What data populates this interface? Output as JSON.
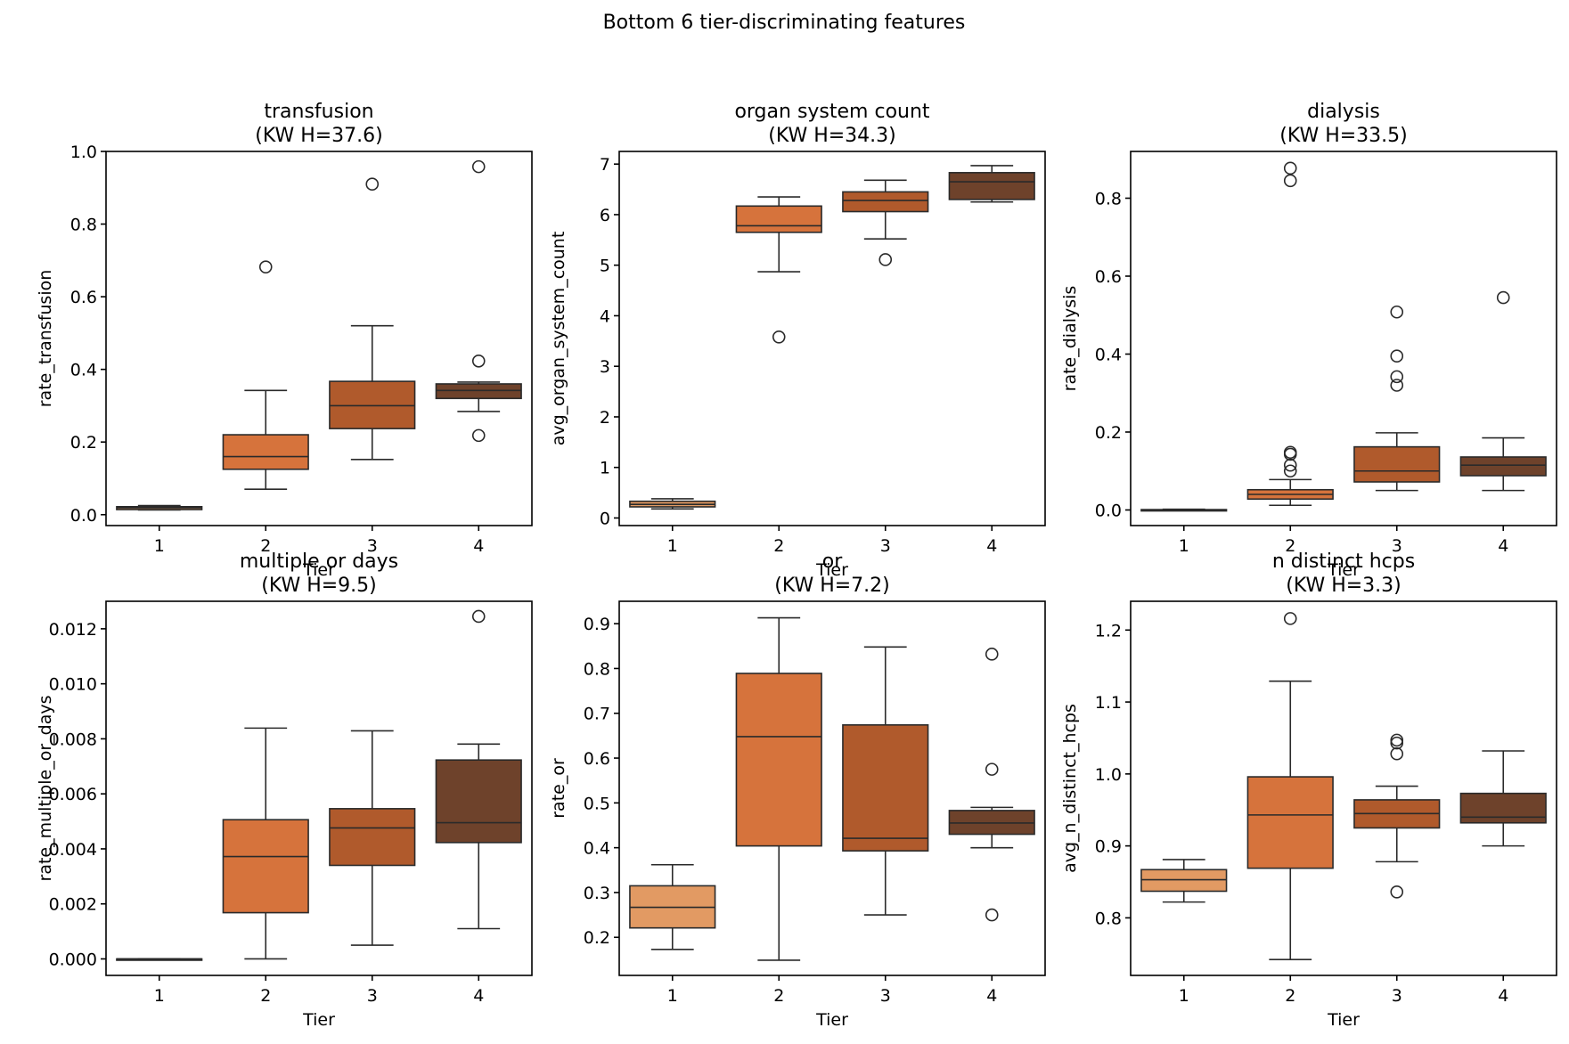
{
  "figure": {
    "suptitle": "Bottom 6 tier-discriminating features"
  },
  "colors": {
    "tier_1": "#e29a63",
    "tier_2": "#d6733c",
    "tier_3": "#b05a2c",
    "tier_4": "#6e422b",
    "edge": "#2a2a2a",
    "axis": "#000000"
  },
  "chart_data": [
    {
      "type": "box",
      "title": "transfusion",
      "subtitle": "(KW H=37.6)",
      "xlabel": "Tier",
      "ylabel": "rate_transfusion",
      "categories": [
        "1",
        "2",
        "3",
        "4"
      ],
      "ylim": [
        -0.03,
        1.0
      ],
      "yticks": [
        0.0,
        0.2,
        0.4,
        0.6,
        0.8,
        1.0
      ],
      "ytick_labels": [
        "0.0",
        "0.2",
        "0.4",
        "0.6",
        "0.8",
        "1.0"
      ],
      "boxes": [
        {
          "tier": "1",
          "whislo": 0.013,
          "q1": 0.014,
          "med": 0.019,
          "q3": 0.022,
          "whishi": 0.025,
          "fliers": []
        },
        {
          "tier": "2",
          "whislo": 0.07,
          "q1": 0.125,
          "med": 0.16,
          "q3": 0.22,
          "whishi": 0.342,
          "fliers": [
            0.682
          ]
        },
        {
          "tier": "3",
          "whislo": 0.152,
          "q1": 0.237,
          "med": 0.3,
          "q3": 0.367,
          "whishi": 0.52,
          "fliers": [
            0.91
          ]
        },
        {
          "tier": "4",
          "whislo": 0.284,
          "q1": 0.32,
          "med": 0.342,
          "q3": 0.36,
          "whishi": 0.365,
          "fliers": [
            0.958,
            0.423,
            0.218
          ]
        }
      ]
    },
    {
      "type": "box",
      "title": "organ system count",
      "subtitle": "(KW H=34.3)",
      "xlabel": "Tier",
      "ylabel": "avg_organ_system_count",
      "categories": [
        "1",
        "2",
        "3",
        "4"
      ],
      "ylim": [
        -0.15,
        7.25
      ],
      "yticks": [
        0,
        1,
        2,
        3,
        4,
        5,
        6,
        7
      ],
      "ytick_labels": [
        "0",
        "1",
        "2",
        "3",
        "4",
        "5",
        "6",
        "7"
      ],
      "boxes": [
        {
          "tier": "1",
          "whislo": 0.18,
          "q1": 0.22,
          "med": 0.27,
          "q3": 0.33,
          "whishi": 0.38,
          "fliers": []
        },
        {
          "tier": "2",
          "whislo": 4.87,
          "q1": 5.65,
          "med": 5.78,
          "q3": 6.17,
          "whishi": 6.35,
          "fliers": [
            3.58
          ]
        },
        {
          "tier": "3",
          "whislo": 5.52,
          "q1": 6.06,
          "med": 6.28,
          "q3": 6.45,
          "whishi": 6.68,
          "fliers": [
            5.11
          ]
        },
        {
          "tier": "4",
          "whislo": 6.25,
          "q1": 6.3,
          "med": 6.65,
          "q3": 6.83,
          "whishi": 6.97,
          "fliers": []
        }
      ]
    },
    {
      "type": "box",
      "title": "dialysis",
      "subtitle": "(KW H=33.5)",
      "xlabel": "Tier",
      "ylabel": "rate_dialysis",
      "categories": [
        "1",
        "2",
        "3",
        "4"
      ],
      "ylim": [
        -0.04,
        0.92
      ],
      "yticks": [
        0.0,
        0.2,
        0.4,
        0.6,
        0.8
      ],
      "ytick_labels": [
        "0.0",
        "0.2",
        "0.4",
        "0.6",
        "0.8"
      ],
      "boxes": [
        {
          "tier": "1",
          "whislo": 0.0,
          "q1": 0.0,
          "med": 0.0,
          "q3": 0.001,
          "whishi": 0.002,
          "fliers": []
        },
        {
          "tier": "2",
          "whislo": 0.012,
          "q1": 0.028,
          "med": 0.04,
          "q3": 0.052,
          "whishi": 0.078,
          "fliers": [
            0.877,
            0.845,
            0.148,
            0.143,
            0.115,
            0.1
          ]
        },
        {
          "tier": "3",
          "whislo": 0.05,
          "q1": 0.072,
          "med": 0.1,
          "q3": 0.162,
          "whishi": 0.198,
          "fliers": [
            0.508,
            0.395,
            0.342,
            0.32
          ]
        },
        {
          "tier": "4",
          "whislo": 0.05,
          "q1": 0.088,
          "med": 0.115,
          "q3": 0.136,
          "whishi": 0.185,
          "fliers": [
            0.545
          ]
        }
      ]
    },
    {
      "type": "box",
      "title": "multiple or days",
      "subtitle": "(KW H=9.5)",
      "xlabel": "Tier",
      "ylabel": "rate_multiple_or_days",
      "categories": [
        "1",
        "2",
        "3",
        "4"
      ],
      "ylim": [
        -0.0006,
        0.013
      ],
      "yticks": [
        0.0,
        0.002,
        0.004,
        0.006,
        0.008,
        0.01,
        0.012
      ],
      "ytick_labels": [
        "0.000",
        "0.002",
        "0.004",
        "0.006",
        "0.008",
        "0.010",
        "0.012"
      ],
      "boxes": [
        {
          "tier": "1",
          "whislo": 0.0,
          "q1": 0.0,
          "med": 0.0,
          "q3": 0.0,
          "whishi": 0.0,
          "fliers": []
        },
        {
          "tier": "2",
          "whislo": 0.0,
          "q1": 0.00168,
          "med": 0.00372,
          "q3": 0.00506,
          "whishi": 0.00839,
          "fliers": []
        },
        {
          "tier": "3",
          "whislo": 0.0005,
          "q1": 0.0034,
          "med": 0.00476,
          "q3": 0.00546,
          "whishi": 0.00829,
          "fliers": []
        },
        {
          "tier": "4",
          "whislo": 0.0011,
          "q1": 0.00423,
          "med": 0.00495,
          "q3": 0.00723,
          "whishi": 0.00781,
          "fliers": [
            0.01245
          ]
        }
      ]
    },
    {
      "type": "box",
      "title": "or",
      "subtitle": "(KW H=7.2)",
      "xlabel": "Tier",
      "ylabel": "rate_or",
      "categories": [
        "1",
        "2",
        "3",
        "4"
      ],
      "ylim": [
        0.115,
        0.95
      ],
      "yticks": [
        0.2,
        0.3,
        0.4,
        0.5,
        0.6,
        0.7,
        0.8,
        0.9
      ],
      "ytick_labels": [
        "0.2",
        "0.3",
        "0.4",
        "0.5",
        "0.6",
        "0.7",
        "0.8",
        "0.9"
      ],
      "boxes": [
        {
          "tier": "1",
          "whislo": 0.173,
          "q1": 0.221,
          "med": 0.267,
          "q3": 0.315,
          "whishi": 0.362,
          "fliers": []
        },
        {
          "tier": "2",
          "whislo": 0.149,
          "q1": 0.404,
          "med": 0.648,
          "q3": 0.789,
          "whishi": 0.913,
          "fliers": []
        },
        {
          "tier": "3",
          "whislo": 0.25,
          "q1": 0.393,
          "med": 0.421,
          "q3": 0.674,
          "whishi": 0.848,
          "fliers": []
        },
        {
          "tier": "4",
          "whislo": 0.4,
          "q1": 0.43,
          "med": 0.455,
          "q3": 0.483,
          "whishi": 0.49,
          "fliers": [
            0.832,
            0.575,
            0.25
          ]
        }
      ]
    },
    {
      "type": "box",
      "title": "n distinct hcps",
      "subtitle": "(KW H=3.3)",
      "xlabel": "Tier",
      "ylabel": "avg_n_distinct_hcps",
      "categories": [
        "1",
        "2",
        "3",
        "4"
      ],
      "ylim": [
        0.72,
        1.24
      ],
      "yticks": [
        0.8,
        0.9,
        1.0,
        1.1,
        1.2
      ],
      "ytick_labels": [
        "0.8",
        "0.9",
        "1.0",
        "1.1",
        "1.2"
      ],
      "boxes": [
        {
          "tier": "1",
          "whislo": 0.822,
          "q1": 0.837,
          "med": 0.853,
          "q3": 0.867,
          "whishi": 0.881,
          "fliers": []
        },
        {
          "tier": "2",
          "whislo": 0.742,
          "q1": 0.869,
          "med": 0.943,
          "q3": 0.996,
          "whishi": 1.129,
          "fliers": [
            1.216
          ]
        },
        {
          "tier": "3",
          "whislo": 0.878,
          "q1": 0.925,
          "med": 0.945,
          "q3": 0.964,
          "whishi": 0.983,
          "fliers": [
            1.047,
            1.043,
            1.028,
            0.836
          ]
        },
        {
          "tier": "4",
          "whislo": 0.9,
          "q1": 0.932,
          "med": 0.94,
          "q3": 0.973,
          "whishi": 1.032,
          "fliers": []
        }
      ]
    }
  ]
}
